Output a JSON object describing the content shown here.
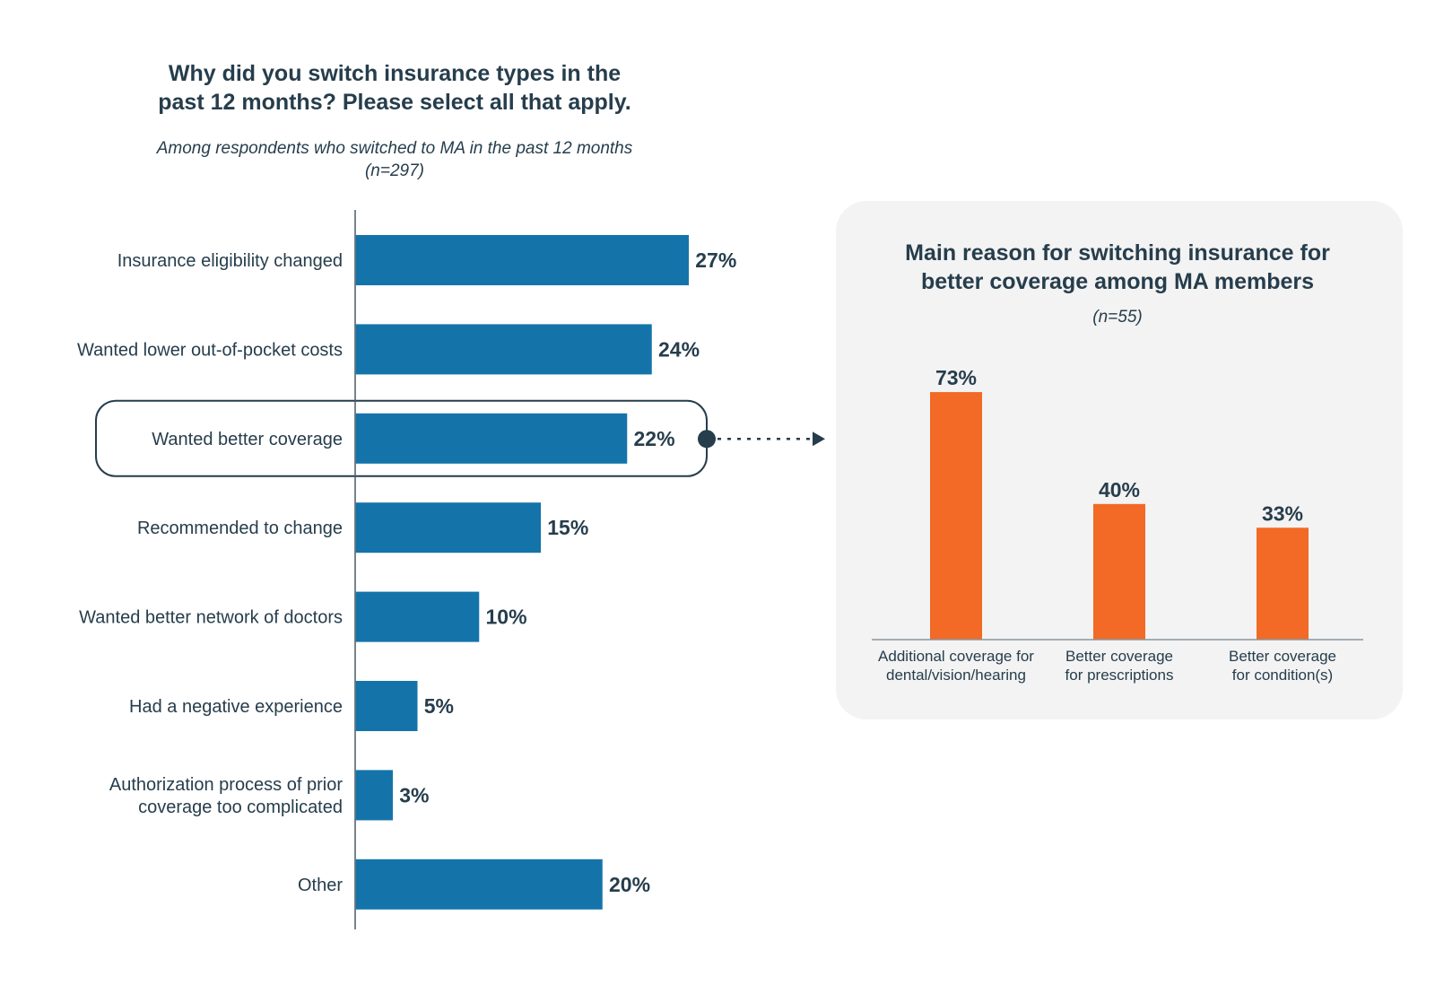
{
  "left_chart": {
    "title_line1": "Why did you switch insurance types in the",
    "title_line2": "past 12 months? Please select all that apply.",
    "subtitle_line1": "Among respondents who switched to MA in the past 12 months",
    "subtitle_line2": "(n=297)"
  },
  "right_chart": {
    "title_line1": "Main reason for switching insurance for",
    "title_line2": "better coverage among MA members",
    "subtitle": "(n=55)"
  },
  "colors": {
    "left_bars": "#1474aa",
    "right_bars": "#f26a26",
    "text": "#263d4c",
    "panel_bg": "#f3f3f3"
  },
  "chart_data": [
    {
      "type": "bar",
      "orientation": "horizontal",
      "title": "Why did you switch insurance types in the past 12 months? Please select all that apply.",
      "subtitle": "Among respondents who switched to MA in the past 12 months (n=297)",
      "categories": [
        [
          "Insurance eligibility changed"
        ],
        [
          "Wanted lower out-of-pocket costs"
        ],
        [
          "Wanted better coverage"
        ],
        [
          "Recommended to change"
        ],
        [
          "Wanted better network of doctors"
        ],
        [
          "Had a negative experience"
        ],
        [
          "Authorization process of prior",
          "coverage too complicated"
        ],
        [
          "Other"
        ]
      ],
      "values": [
        27,
        24,
        22,
        15,
        10,
        5,
        3,
        20
      ],
      "value_labels": [
        "27%",
        "24%",
        "22%",
        "15%",
        "10%",
        "5%",
        "3%",
        "20%"
      ],
      "highlighted_category": "Wanted better coverage",
      "unit": "%"
    },
    {
      "type": "bar",
      "orientation": "vertical",
      "title": "Main reason for switching insurance for better coverage among MA members",
      "subtitle": "(n=55)",
      "categories": [
        [
          "Additional coverage for",
          "dental/vision/hearing"
        ],
        [
          "Better coverage",
          "for prescriptions"
        ],
        [
          "Better coverage",
          "for condition(s)"
        ]
      ],
      "values": [
        73,
        40,
        33
      ],
      "value_labels": [
        "73%",
        "40%",
        "33%"
      ],
      "unit": "%"
    }
  ]
}
